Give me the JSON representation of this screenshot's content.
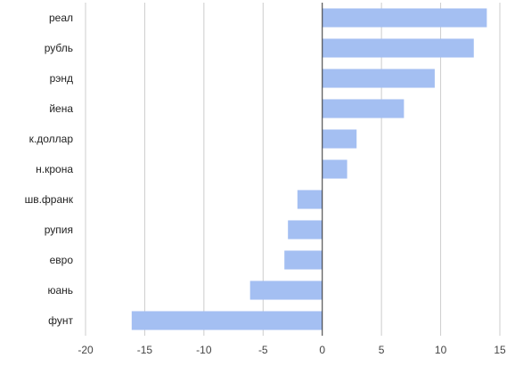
{
  "chart_data": {
    "type": "bar",
    "orientation": "horizontal",
    "categories": [
      "реал",
      "рубль",
      "рэнд",
      "йена",
      "к.доллар",
      "н.крона",
      "шв.франк",
      "рупия",
      "евро",
      "юань",
      "фунт"
    ],
    "values": [
      13.9,
      12.8,
      9.5,
      6.9,
      2.9,
      2.1,
      -2.1,
      -2.9,
      -3.2,
      -6.1,
      -16.1
    ],
    "xlim": [
      -20,
      15
    ],
    "xticks": [
      "-20",
      "-15",
      "-10",
      "-5",
      "0",
      "5",
      "10",
      "15"
    ],
    "grid": "vertical",
    "bar_color": "#a4bff2",
    "zero_line_color": "#333333",
    "grid_color": "#cccccc"
  }
}
